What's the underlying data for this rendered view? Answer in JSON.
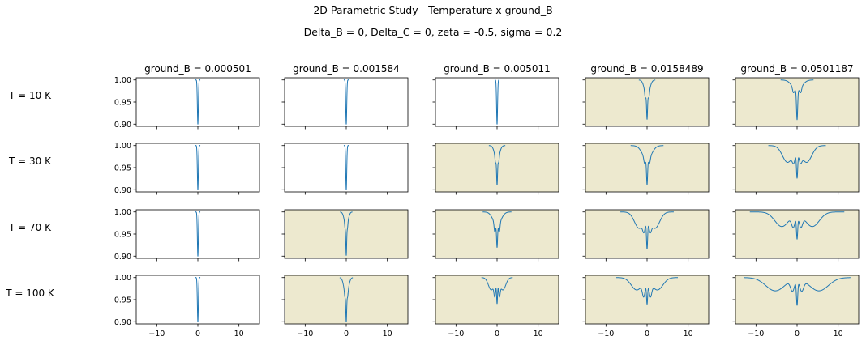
{
  "figure": {
    "title": "2D Parametric Study - Temperature x ground_B",
    "subtitle": "Delta_B =  0,  Delta_C = 0,  zeta = -0.5, sigma =  0.2"
  },
  "colors": {
    "line": "#1f77b4",
    "highlight_bg": "#ede9cf",
    "plain_bg": "#ffffff",
    "axis": "#000000"
  },
  "chart_data": {
    "type": "line",
    "layout": "grid of small multiples (rows = temperature, columns = ground_B)",
    "row_labels": [
      "T = 10 K",
      "T = 30 K",
      "T = 70 K",
      "T = 100 K"
    ],
    "column_titles": [
      "ground_B = 0.000501",
      "ground_B = 0.001584",
      "ground_B = 0.005011",
      "ground_B = 0.0158489",
      "ground_B = 0.0501187"
    ],
    "xlim": [
      -15,
      15
    ],
    "ylim": [
      0.895,
      1.005
    ],
    "x_ticks": [
      -10,
      0,
      10
    ],
    "x_tick_labels": [
      "−10",
      "0",
      "10"
    ],
    "y_ticks": [
      0.9,
      0.95,
      1.0
    ],
    "y_tick_labels": [
      "0.90",
      "0.95",
      "1.00"
    ],
    "grid": false,
    "panels": [
      [
        {
          "highlighted": false,
          "x_extent": [
            -0.6,
            0.6
          ],
          "dips": [
            {
              "center": 0,
              "depth": 0.1,
              "width": 0.12
            }
          ]
        },
        {
          "highlighted": false,
          "x_extent": [
            -0.6,
            0.6
          ],
          "dips": [
            {
              "center": 0,
              "depth": 0.1,
              "width": 0.12
            }
          ]
        },
        {
          "highlighted": false,
          "x_extent": [
            -0.6,
            0.6
          ],
          "dips": [
            {
              "center": 0,
              "depth": 0.1,
              "width": 0.12
            }
          ]
        },
        {
          "highlighted": true,
          "x_extent": [
            -2,
            2
          ],
          "dips": [
            {
              "center": 0,
              "depth": 0.038,
              "width": 0.6
            },
            {
              "center": -0.45,
              "depth": 0.011,
              "width": 0.13
            },
            {
              "center": 0.45,
              "depth": 0.011,
              "width": 0.13
            },
            {
              "center": 0,
              "depth": 0.051,
              "width": 0.11
            }
          ]
        },
        {
          "highlighted": true,
          "x_extent": [
            -4,
            4
          ],
          "dips": [
            {
              "center": 0,
              "depth": 0.024,
              "width": 1.15
            },
            {
              "center": -0.9,
              "depth": 0.011,
              "width": 0.22
            },
            {
              "center": 0.9,
              "depth": 0.011,
              "width": 0.22
            },
            {
              "center": 0,
              "depth": 0.066,
              "width": 0.14
            }
          ]
        }
      ],
      [
        {
          "highlighted": false,
          "x_extent": [
            -0.6,
            0.6
          ],
          "dips": [
            {
              "center": 0,
              "depth": 0.1,
              "width": 0.12
            }
          ]
        },
        {
          "highlighted": false,
          "x_extent": [
            -0.6,
            0.6
          ],
          "dips": [
            {
              "center": 0,
              "depth": 0.1,
              "width": 0.12
            }
          ]
        },
        {
          "highlighted": true,
          "x_extent": [
            -2,
            2
          ],
          "dips": [
            {
              "center": 0,
              "depth": 0.035,
              "width": 0.55
            },
            {
              "center": -0.4,
              "depth": 0.011,
              "width": 0.12
            },
            {
              "center": 0.4,
              "depth": 0.011,
              "width": 0.12
            },
            {
              "center": 0,
              "depth": 0.054,
              "width": 0.11
            }
          ]
        },
        {
          "highlighted": true,
          "x_extent": [
            -4,
            4
          ],
          "dips": [
            {
              "center": 0,
              "depth": 0.032,
              "width": 1.1
            },
            {
              "center": -0.6,
              "depth": 0.013,
              "width": 0.2
            },
            {
              "center": 0.6,
              "depth": 0.013,
              "width": 0.2
            },
            {
              "center": 0,
              "depth": 0.056,
              "width": 0.13
            }
          ]
        },
        {
          "highlighted": true,
          "x_extent": [
            -7,
            7
          ],
          "dips": [
            {
              "center": -2.3,
              "depth": 0.038,
              "width": 1.25
            },
            {
              "center": 2.3,
              "depth": 0.038,
              "width": 1.25
            },
            {
              "center": -0.8,
              "depth": 0.02,
              "width": 0.35
            },
            {
              "center": 0.8,
              "depth": 0.02,
              "width": 0.35
            },
            {
              "center": 0,
              "depth": 0.057,
              "width": 0.15
            }
          ]
        }
      ],
      [
        {
          "highlighted": false,
          "x_extent": [
            -0.6,
            0.6
          ],
          "dips": [
            {
              "center": 0,
              "depth": 0.1,
              "width": 0.12
            }
          ]
        },
        {
          "highlighted": true,
          "x_extent": [
            -1.5,
            1.5
          ],
          "dips": [
            {
              "center": 0,
              "depth": 0.033,
              "width": 0.45
            },
            {
              "center": -0.3,
              "depth": 0.01,
              "width": 0.1
            },
            {
              "center": 0.3,
              "depth": 0.01,
              "width": 0.1
            },
            {
              "center": 0,
              "depth": 0.065,
              "width": 0.1
            }
          ]
        },
        {
          "highlighted": true,
          "x_extent": [
            -3.5,
            3.5
          ],
          "dips": [
            {
              "center": 0,
              "depth": 0.03,
              "width": 0.95
            },
            {
              "center": -0.55,
              "depth": 0.02,
              "width": 0.17
            },
            {
              "center": 0.55,
              "depth": 0.02,
              "width": 0.17
            },
            {
              "center": 0,
              "depth": 0.05,
              "width": 0.12
            }
          ]
        },
        {
          "highlighted": true,
          "x_extent": [
            -6.5,
            6.5
          ],
          "dips": [
            {
              "center": -1.9,
              "depth": 0.037,
              "width": 1.15
            },
            {
              "center": 1.9,
              "depth": 0.037,
              "width": 1.15
            },
            {
              "center": -0.75,
              "depth": 0.022,
              "width": 0.3
            },
            {
              "center": 0.75,
              "depth": 0.022,
              "width": 0.3
            },
            {
              "center": 0,
              "depth": 0.063,
              "width": 0.14
            }
          ]
        },
        {
          "highlighted": true,
          "x_extent": [
            -11.5,
            11.5
          ],
          "dips": [
            {
              "center": -3.7,
              "depth": 0.033,
              "width": 1.7
            },
            {
              "center": 3.7,
              "depth": 0.033,
              "width": 1.7
            },
            {
              "center": -0.9,
              "depth": 0.026,
              "width": 0.42
            },
            {
              "center": 0.9,
              "depth": 0.026,
              "width": 0.42
            },
            {
              "center": 0,
              "depth": 0.05,
              "width": 0.15
            }
          ]
        }
      ],
      [
        {
          "highlighted": false,
          "x_extent": [
            -0.6,
            0.6
          ],
          "dips": [
            {
              "center": 0,
              "depth": 0.1,
              "width": 0.12
            }
          ]
        },
        {
          "highlighted": true,
          "x_extent": [
            -1.6,
            1.6
          ],
          "dips": [
            {
              "center": 0,
              "depth": 0.045,
              "width": 0.5
            },
            {
              "center": -0.35,
              "depth": 0.008,
              "width": 0.1
            },
            {
              "center": 0.35,
              "depth": 0.008,
              "width": 0.1
            },
            {
              "center": 0,
              "depth": 0.055,
              "width": 0.1
            }
          ]
        },
        {
          "highlighted": true,
          "x_extent": [
            -3.8,
            3.8
          ],
          "dips": [
            {
              "center": -1.4,
              "depth": 0.028,
              "width": 0.7
            },
            {
              "center": 1.4,
              "depth": 0.028,
              "width": 0.7
            },
            {
              "center": -0.55,
              "depth": 0.03,
              "width": 0.2
            },
            {
              "center": 0.55,
              "depth": 0.03,
              "width": 0.2
            },
            {
              "center": 0,
              "depth": 0.05,
              "width": 0.12
            }
          ]
        },
        {
          "highlighted": true,
          "x_extent": [
            -7.5,
            7.5
          ],
          "dips": [
            {
              "center": -2.5,
              "depth": 0.028,
              "width": 1.35
            },
            {
              "center": 2.5,
              "depth": 0.028,
              "width": 1.35
            },
            {
              "center": -0.8,
              "depth": 0.03,
              "width": 0.33
            },
            {
              "center": 0.8,
              "depth": 0.03,
              "width": 0.33
            },
            {
              "center": 0,
              "depth": 0.047,
              "width": 0.14
            }
          ]
        },
        {
          "highlighted": true,
          "x_extent": [
            -13,
            13
          ],
          "dips": [
            {
              "center": -5.3,
              "depth": 0.03,
              "width": 2.3
            },
            {
              "center": 5.3,
              "depth": 0.03,
              "width": 2.3
            },
            {
              "center": -1.1,
              "depth": 0.025,
              "width": 0.48
            },
            {
              "center": 1.1,
              "depth": 0.025,
              "width": 0.48
            },
            {
              "center": 0,
              "depth": 0.055,
              "width": 0.16
            }
          ]
        }
      ]
    ]
  }
}
